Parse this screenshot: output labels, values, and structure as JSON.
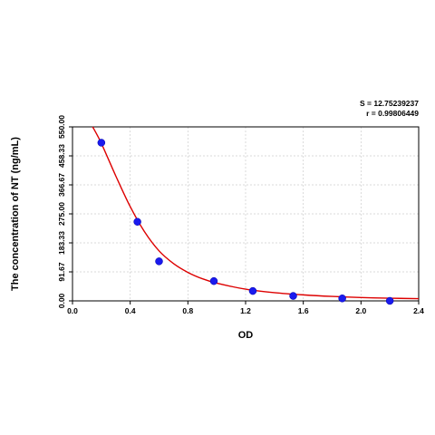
{
  "chart_data": {
    "type": "scatter",
    "xlabel": "OD",
    "ylabel": "The concentration of  NT (ng/mL)",
    "xlim": [
      0.0,
      2.4
    ],
    "ylim": [
      0.0,
      550.0
    ],
    "x_ticks": [
      "0.0",
      "0.4",
      "0.8",
      "1.2",
      "1.6",
      "2.0",
      "2.4"
    ],
    "y_ticks": [
      "0.00",
      "91.67",
      "183.33",
      "275.00",
      "366.67",
      "458.33",
      "550.00"
    ],
    "grid": true,
    "stats": {
      "s": "S = 12.75239237",
      "r": "r = 0.99806449"
    },
    "points": [
      {
        "x": 0.2,
        "y": 500
      },
      {
        "x": 0.45,
        "y": 250
      },
      {
        "x": 0.6,
        "y": 125
      },
      {
        "x": 0.98,
        "y": 62.5
      },
      {
        "x": 1.25,
        "y": 31.25
      },
      {
        "x": 1.53,
        "y": 15.6
      },
      {
        "x": 1.87,
        "y": 7.8
      },
      {
        "x": 2.2,
        "y": 0
      }
    ],
    "fit_curve": [
      {
        "x": 0.14,
        "y": 550
      },
      {
        "x": 0.2,
        "y": 498
      },
      {
        "x": 0.3,
        "y": 395
      },
      {
        "x": 0.4,
        "y": 298
      },
      {
        "x": 0.5,
        "y": 218
      },
      {
        "x": 0.6,
        "y": 158
      },
      {
        "x": 0.7,
        "y": 118
      },
      {
        "x": 0.8,
        "y": 90
      },
      {
        "x": 0.9,
        "y": 70
      },
      {
        "x": 1.0,
        "y": 56
      },
      {
        "x": 1.2,
        "y": 37
      },
      {
        "x": 1.4,
        "y": 26
      },
      {
        "x": 1.6,
        "y": 19
      },
      {
        "x": 1.8,
        "y": 14
      },
      {
        "x": 2.0,
        "y": 10.5
      },
      {
        "x": 2.2,
        "y": 8.5
      },
      {
        "x": 2.4,
        "y": 7
      }
    ],
    "colors": {
      "curve": "#dd0000",
      "point": "#1a1aee",
      "grid": "#cccccc",
      "axis": "#000000"
    }
  }
}
